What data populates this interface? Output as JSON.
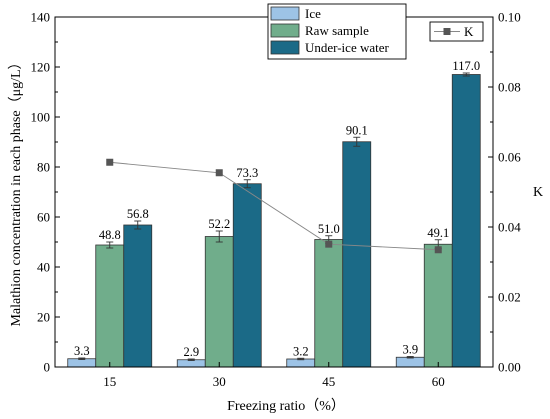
{
  "chart_data": {
    "type": "bar",
    "categories": [
      "15",
      "30",
      "45",
      "60"
    ],
    "series": [
      {
        "name": "Ice",
        "values": [
          3.3,
          2.9,
          3.2,
          3.9
        ],
        "errors": [
          0.3,
          0.3,
          0.3,
          0.3
        ],
        "color": "#9DC3E6"
      },
      {
        "name": "Raw sample",
        "values": [
          48.8,
          52.2,
          51.0,
          49.1
        ],
        "errors": [
          1.2,
          2.2,
          1.5,
          1.8
        ],
        "color": "#70AD8B"
      },
      {
        "name": "Under-ice water",
        "values": [
          56.8,
          73.3,
          90.1,
          117.0
        ],
        "errors": [
          1.6,
          1.6,
          1.8,
          0.6
        ],
        "color": "#1B6A87"
      }
    ],
    "data_labels": [
      [
        "3.3",
        "2.9",
        "3.2",
        "3.9"
      ],
      [
        "48.8",
        "52.2",
        "51.0",
        "49.1"
      ],
      [
        "56.8",
        "73.3",
        "90.1",
        "117.0"
      ]
    ],
    "line_series": {
      "name": "K",
      "values": [
        0.0585,
        0.0555,
        0.0351,
        0.0335
      ],
      "errors": [
        0.0006,
        0.0006,
        0.0006,
        0.0006
      ],
      "color": "#555555"
    },
    "xlabel": "Freezing ratio（%）",
    "ylabel": "Malathion concentration in each phase（μg/L）",
    "y2label": "K",
    "ylim": [
      0,
      140
    ],
    "yticks": [
      "0",
      "20",
      "40",
      "60",
      "80",
      "100",
      "120",
      "140"
    ],
    "y2lim": [
      0,
      0.1
    ],
    "y2ticks": [
      "0.00",
      "0.02",
      "0.04",
      "0.06",
      "0.08",
      "0.10"
    ],
    "legend_position": "top-center",
    "legend2_position": "top-right",
    "grid": false
  }
}
